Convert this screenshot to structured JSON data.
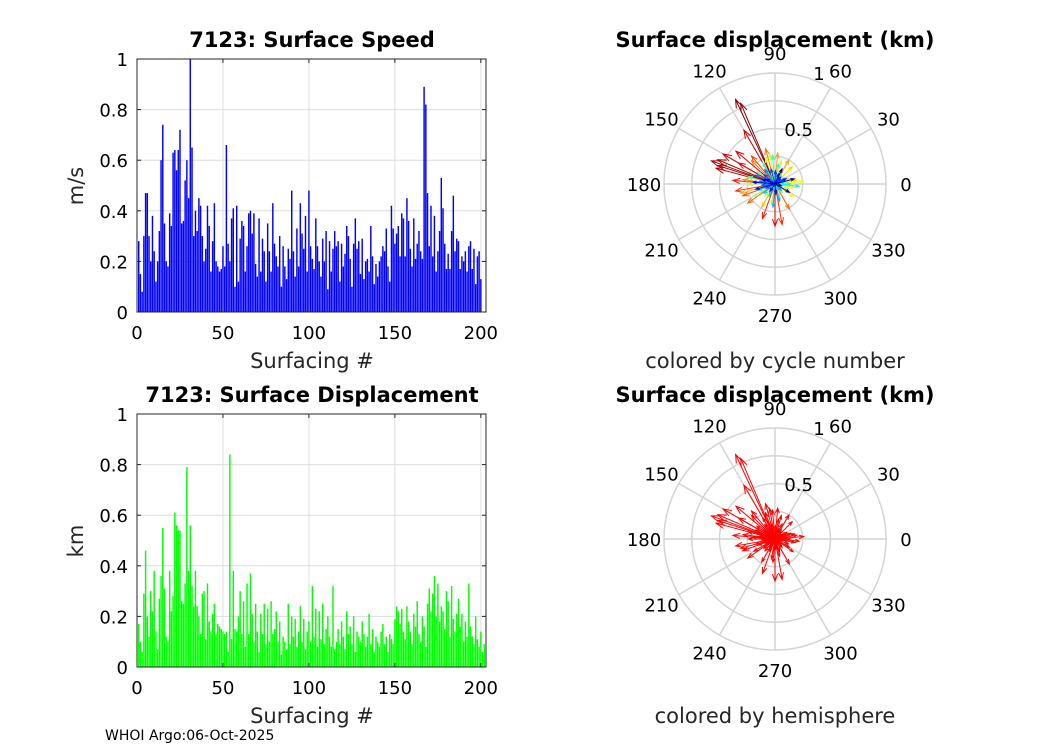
{
  "footer": "WHOI Argo:06-Oct-2025",
  "chart_data": [
    {
      "type": "bar",
      "title": "7123: Surface Speed",
      "xlabel": "Surfacing #",
      "ylabel": "m/s",
      "xlim": [
        0,
        203
      ],
      "ylim": [
        0,
        1
      ],
      "xticks": [
        0,
        50,
        100,
        150,
        200
      ],
      "yticks": [
        0,
        0.2,
        0.4,
        0.6,
        0.8,
        1
      ],
      "ytick_labels": [
        "0",
        "0.2",
        "0.4",
        "0.6",
        "0.8",
        "1"
      ],
      "color": "#0000ff",
      "values": [
        0.28,
        0.15,
        0.08,
        0.3,
        0.47,
        0.47,
        0.3,
        0.2,
        0.38,
        0.24,
        0.12,
        0.2,
        0.32,
        0.6,
        0.74,
        0.35,
        0.2,
        0.18,
        0.39,
        0.34,
        0.63,
        0.64,
        0.56,
        0.64,
        0.72,
        0.35,
        0.36,
        0.52,
        0.6,
        0.45,
        1.0,
        0.65,
        0.3,
        0.4,
        0.32,
        0.45,
        0.42,
        0.3,
        0.2,
        0.25,
        0.42,
        0.34,
        0.16,
        0.28,
        0.43,
        0.2,
        0.18,
        0.16,
        0.17,
        0.26,
        0.18,
        0.66,
        0.27,
        0.2,
        0.37,
        0.41,
        0.1,
        0.42,
        0.12,
        0.29,
        0.36,
        0.34,
        0.16,
        0.26,
        0.39,
        0.4,
        0.31,
        0.39,
        0.19,
        0.14,
        0.37,
        0.16,
        0.29,
        0.24,
        0.12,
        0.35,
        0.24,
        0.16,
        0.43,
        0.27,
        0.22,
        0.18,
        0.3,
        0.1,
        0.26,
        0.18,
        0.13,
        0.25,
        0.21,
        0.48,
        0.24,
        0.14,
        0.33,
        0.18,
        0.43,
        0.31,
        0.25,
        0.38,
        0.16,
        0.48,
        0.26,
        0.21,
        0.17,
        0.37,
        0.26,
        0.2,
        0.14,
        0.29,
        0.2,
        0.32,
        0.09,
        0.28,
        0.16,
        0.25,
        0.32,
        0.26,
        0.28,
        0.12,
        0.27,
        0.18,
        0.23,
        0.34,
        0.3,
        0.21,
        0.1,
        0.27,
        0.37,
        0.25,
        0.28,
        0.15,
        0.29,
        0.13,
        0.2,
        0.21,
        0.16,
        0.34,
        0.22,
        0.11,
        0.19,
        0.14,
        0.2,
        0.22,
        0.26,
        0.24,
        0.33,
        0.18,
        0.12,
        0.42,
        0.33,
        0.27,
        0.31,
        0.34,
        0.22,
        0.39,
        0.37,
        0.22,
        0.45,
        0.36,
        0.25,
        0.18,
        0.37,
        0.21,
        0.27,
        0.32,
        0.24,
        0.21,
        0.89,
        0.82,
        0.47,
        0.26,
        0.42,
        0.22,
        0.38,
        0.16,
        0.24,
        0.32,
        0.53,
        0.41,
        0.27,
        0.17,
        0.23,
        0.17,
        0.32,
        0.46,
        0.24,
        0.29,
        0.28,
        0.17,
        0.22,
        0.2,
        0.24,
        0.16,
        0.26,
        0.28,
        0.17,
        0.25,
        0.11,
        0.22,
        0.24,
        0.13
      ]
    },
    {
      "type": "bar",
      "title": "7123: Surface Displacement",
      "xlabel": "Surfacing #",
      "ylabel": "km",
      "xlim": [
        0,
        203
      ],
      "ylim": [
        0,
        1
      ],
      "xticks": [
        0,
        50,
        100,
        150,
        200
      ],
      "yticks": [
        0,
        0.2,
        0.4,
        0.6,
        0.8,
        1
      ],
      "ytick_labels": [
        "0",
        "0.2",
        "0.4",
        "0.6",
        "0.8",
        "1"
      ],
      "color": "#00ff00",
      "values": [
        0.17,
        0.1,
        0.06,
        0.29,
        0.46,
        0.2,
        0.12,
        0.3,
        0.22,
        0.38,
        0.14,
        0.07,
        0.27,
        0.36,
        0.55,
        0.31,
        0.12,
        0.1,
        0.38,
        0.22,
        0.28,
        0.61,
        0.56,
        0.54,
        0.54,
        0.26,
        0.25,
        0.33,
        0.79,
        0.38,
        0.56,
        0.32,
        0.24,
        0.38,
        0.24,
        0.2,
        0.13,
        0.29,
        0.3,
        0.11,
        0.33,
        0.18,
        0.14,
        0.21,
        0.25,
        0.13,
        0.17,
        0.16,
        0.15,
        0.14,
        0.13,
        0.14,
        0.06,
        0.84,
        0.11,
        0.38,
        0.15,
        0.14,
        0.2,
        0.3,
        0.13,
        0.26,
        0.08,
        0.33,
        0.13,
        0.37,
        0.21,
        0.1,
        0.25,
        0.14,
        0.06,
        0.21,
        0.13,
        0.25,
        0.09,
        0.23,
        0.1,
        0.26,
        0.13,
        0.15,
        0.22,
        0.1,
        0.18,
        0.05,
        0.12,
        0.1,
        0.07,
        0.25,
        0.09,
        0.2,
        0.12,
        0.19,
        0.08,
        0.14,
        0.24,
        0.1,
        0.19,
        0.07,
        0.14,
        0.18,
        0.1,
        0.32,
        0.12,
        0.23,
        0.08,
        0.22,
        0.11,
        0.25,
        0.09,
        0.15,
        0.2,
        0.12,
        0.08,
        0.32,
        0.07,
        0.1,
        0.15,
        0.09,
        0.18,
        0.12,
        0.07,
        0.22,
        0.13,
        0.16,
        0.09,
        0.2,
        0.06,
        0.14,
        0.12,
        0.1,
        0.18,
        0.13,
        0.08,
        0.12,
        0.21,
        0.09,
        0.15,
        0.06,
        0.12,
        0.1,
        0.08,
        0.14,
        0.17,
        0.09,
        0.12,
        0.06,
        0.13,
        0.11,
        0.09,
        0.19,
        0.24,
        0.22,
        0.17,
        0.23,
        0.14,
        0.11,
        0.24,
        0.18,
        0.14,
        0.09,
        0.21,
        0.16,
        0.26,
        0.13,
        0.1,
        0.2,
        0.16,
        0.08,
        0.25,
        0.31,
        0.22,
        0.29,
        0.36,
        0.2,
        0.33,
        0.18,
        0.24,
        0.22,
        0.15,
        0.3,
        0.26,
        0.12,
        0.32,
        0.19,
        0.14,
        0.21,
        0.27,
        0.16,
        0.21,
        0.1,
        0.18,
        0.12,
        0.33,
        0.16,
        0.12,
        0.09,
        0.2,
        0.11,
        0.08,
        0.14,
        0.06,
        0.09
      ]
    },
    {
      "type": "polar",
      "title": "Surface displacement (km)",
      "caption": "colored by cycle number",
      "rlim": [
        0,
        1
      ],
      "rticks": [
        0.5,
        1
      ],
      "rtick_labels": [
        "0.5",
        "1"
      ],
      "theta_ticks": [
        0,
        30,
        60,
        90,
        120,
        150,
        180,
        210,
        240,
        270,
        300,
        330
      ],
      "theta_labels": [
        "0",
        "30",
        "60",
        "90",
        "120",
        "150",
        "180",
        "210",
        "240",
        "270",
        "300",
        "330"
      ],
      "colormap": "jet",
      "color_by": "cycle",
      "vectors": [
        [
          115,
          0.84
        ],
        [
          113,
          0.79
        ],
        [
          160,
          0.61
        ],
        [
          157,
          0.56
        ],
        [
          165,
          0.55
        ],
        [
          162,
          0.54
        ],
        [
          150,
          0.54
        ],
        [
          120,
          0.56
        ],
        [
          140,
          0.46
        ],
        [
          270,
          0.38
        ],
        [
          150,
          0.38
        ],
        [
          175,
          0.38
        ],
        [
          250,
          0.33
        ],
        [
          280,
          0.37
        ],
        [
          190,
          0.36
        ],
        [
          130,
          0.33
        ],
        [
          200,
          0.31
        ],
        [
          215,
          0.3
        ],
        [
          300,
          0.26
        ],
        [
          105,
          0.33
        ],
        [
          135,
          0.3
        ],
        [
          172,
          0.29
        ],
        [
          85,
          0.28
        ],
        [
          60,
          0.25
        ],
        [
          195,
          0.32
        ],
        [
          240,
          0.24
        ],
        [
          45,
          0.22
        ],
        [
          10,
          0.2
        ],
        [
          350,
          0.18
        ],
        [
          325,
          0.2
        ],
        [
          5,
          0.26
        ],
        [
          110,
          0.25
        ],
        [
          100,
          0.28
        ],
        [
          75,
          0.22
        ],
        [
          20,
          0.15
        ],
        [
          340,
          0.13
        ],
        [
          180,
          0.24
        ],
        [
          210,
          0.22
        ],
        [
          230,
          0.14
        ],
        [
          260,
          0.18
        ],
        [
          290,
          0.12
        ],
        [
          310,
          0.1
        ],
        [
          30,
          0.12
        ],
        [
          145,
          0.2
        ],
        [
          165,
          0.25
        ],
        [
          120,
          0.22
        ],
        [
          95,
          0.26
        ],
        [
          80,
          0.18
        ],
        [
          55,
          0.1
        ],
        [
          0,
          0.14
        ],
        [
          355,
          0.22
        ],
        [
          12,
          0.09
        ],
        [
          200,
          0.16
        ],
        [
          220,
          0.13
        ],
        [
          245,
          0.12
        ],
        [
          265,
          0.21
        ],
        [
          285,
          0.16
        ],
        [
          315,
          0.08
        ],
        [
          35,
          0.07
        ],
        [
          125,
          0.16
        ],
        [
          155,
          0.19
        ],
        [
          170,
          0.14
        ],
        [
          185,
          0.12
        ],
        [
          205,
          0.09
        ],
        [
          140,
          0.13
        ],
        [
          105,
          0.14
        ],
        [
          88,
          0.12
        ],
        [
          70,
          0.1
        ],
        [
          50,
          0.08
        ],
        [
          25,
          0.11
        ],
        [
          175,
          0.2
        ],
        [
          160,
          0.12
        ],
        [
          150,
          0.09
        ],
        [
          195,
          0.18
        ],
        [
          235,
          0.08
        ],
        [
          275,
          0.09
        ],
        [
          330,
          0.15
        ],
        [
          345,
          0.06
        ],
        [
          15,
          0.18
        ],
        [
          65,
          0.15
        ]
      ]
    },
    {
      "type": "polar",
      "title": "Surface displacement (km)",
      "caption": "colored by hemisphere",
      "rlim": [
        0,
        1
      ],
      "rticks": [
        0.5,
        1
      ],
      "rtick_labels": [
        "0.5",
        "1"
      ],
      "theta_ticks": [
        0,
        30,
        60,
        90,
        120,
        150,
        180,
        210,
        240,
        270,
        300,
        330
      ],
      "theta_labels": [
        "0",
        "30",
        "60",
        "90",
        "120",
        "150",
        "180",
        "210",
        "240",
        "270",
        "300",
        "330"
      ],
      "color": "#ff0000",
      "color_by": "hemisphere",
      "vectors": [
        [
          115,
          0.84
        ],
        [
          113,
          0.79
        ],
        [
          160,
          0.61
        ],
        [
          157,
          0.56
        ],
        [
          165,
          0.55
        ],
        [
          162,
          0.54
        ],
        [
          150,
          0.54
        ],
        [
          120,
          0.56
        ],
        [
          140,
          0.46
        ],
        [
          270,
          0.38
        ],
        [
          150,
          0.38
        ],
        [
          175,
          0.38
        ],
        [
          250,
          0.33
        ],
        [
          280,
          0.37
        ],
        [
          190,
          0.36
        ],
        [
          130,
          0.33
        ],
        [
          200,
          0.31
        ],
        [
          215,
          0.3
        ],
        [
          300,
          0.26
        ],
        [
          105,
          0.33
        ],
        [
          135,
          0.3
        ],
        [
          172,
          0.29
        ],
        [
          85,
          0.28
        ],
        [
          60,
          0.25
        ],
        [
          195,
          0.32
        ],
        [
          240,
          0.24
        ],
        [
          45,
          0.22
        ],
        [
          10,
          0.2
        ],
        [
          350,
          0.18
        ],
        [
          325,
          0.2
        ],
        [
          5,
          0.26
        ],
        [
          110,
          0.25
        ],
        [
          100,
          0.28
        ],
        [
          75,
          0.22
        ],
        [
          20,
          0.15
        ],
        [
          340,
          0.13
        ],
        [
          180,
          0.24
        ],
        [
          210,
          0.22
        ],
        [
          230,
          0.14
        ],
        [
          260,
          0.18
        ],
        [
          290,
          0.12
        ],
        [
          310,
          0.1
        ],
        [
          30,
          0.12
        ],
        [
          145,
          0.2
        ],
        [
          165,
          0.25
        ],
        [
          120,
          0.22
        ],
        [
          95,
          0.26
        ],
        [
          80,
          0.18
        ],
        [
          55,
          0.1
        ],
        [
          0,
          0.14
        ],
        [
          355,
          0.22
        ],
        [
          12,
          0.09
        ],
        [
          200,
          0.16
        ],
        [
          220,
          0.13
        ],
        [
          245,
          0.12
        ],
        [
          265,
          0.21
        ],
        [
          285,
          0.16
        ],
        [
          315,
          0.08
        ],
        [
          35,
          0.07
        ],
        [
          125,
          0.16
        ],
        [
          155,
          0.19
        ],
        [
          170,
          0.14
        ],
        [
          185,
          0.12
        ],
        [
          205,
          0.09
        ],
        [
          140,
          0.13
        ],
        [
          105,
          0.14
        ],
        [
          88,
          0.12
        ],
        [
          70,
          0.1
        ],
        [
          50,
          0.08
        ],
        [
          25,
          0.11
        ],
        [
          175,
          0.2
        ],
        [
          160,
          0.12
        ],
        [
          150,
          0.09
        ],
        [
          195,
          0.18
        ],
        [
          235,
          0.08
        ],
        [
          275,
          0.09
        ],
        [
          330,
          0.15
        ],
        [
          345,
          0.06
        ],
        [
          15,
          0.18
        ],
        [
          65,
          0.15
        ]
      ]
    }
  ]
}
